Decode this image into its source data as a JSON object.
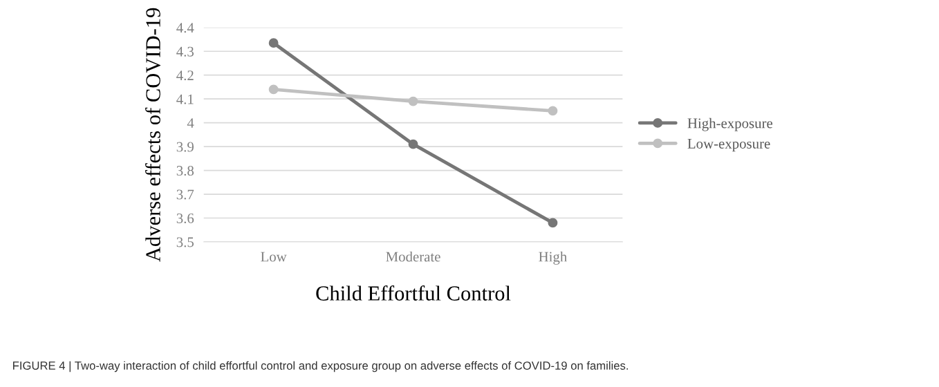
{
  "chart_data": {
    "type": "line",
    "xlabel": "Child Effortful Control",
    "ylabel": "Adverse effects of COVID-19",
    "categories": [
      "Low",
      "Moderate",
      "High"
    ],
    "series": [
      {
        "name": "High-exposure",
        "color": "#767676",
        "values": [
          4.335,
          3.91,
          3.58
        ]
      },
      {
        "name": "Low-exposure",
        "color": "#c0c0c0",
        "values": [
          4.14,
          4.09,
          4.05
        ]
      }
    ],
    "ylim": [
      3.5,
      4.4
    ],
    "yticks": [
      3.5,
      3.6,
      3.7,
      3.8,
      3.9,
      4,
      4.1,
      4.2,
      4.3,
      4.4
    ],
    "grid": "y",
    "legend": "right",
    "marker": "circle",
    "line_style": "solid",
    "annotations": [
      "FIGURE 4 | Two-way interaction of child effortful control and exposure group on adverse effects of COVID-19 on families."
    ]
  }
}
